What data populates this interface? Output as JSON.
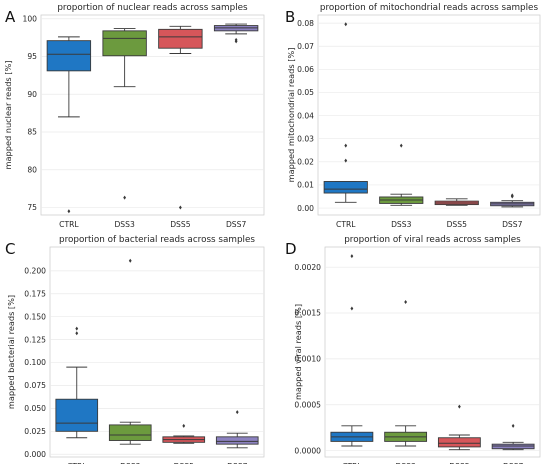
{
  "chart_data": [
    {
      "type": "box",
      "panel_letter": "A",
      "title": "proportion of nuclear reads across samples",
      "xlabel": "",
      "ylabel": "mapped nuclear reads [%]",
      "categories": [
        "CTRL",
        "DSS3",
        "DSS5",
        "DSS7"
      ],
      "ylim": [
        74,
        100.5
      ],
      "yticks": [
        75,
        80,
        85,
        90,
        95,
        100
      ],
      "ytick_labels": [
        "75",
        "80",
        "85",
        "90",
        "95",
        "100"
      ],
      "grid": true,
      "colors": [
        "#1f77c4",
        "#6c9a3e",
        "#d6565a",
        "#8c82c0"
      ],
      "boxes": [
        {
          "category": "CTRL",
          "whislo": 87.0,
          "q1": 93.1,
          "med": 95.3,
          "q3": 97.1,
          "whishi": 97.6,
          "fliers": [
            74.5
          ]
        },
        {
          "category": "DSS3",
          "whislo": 91.0,
          "q1": 95.1,
          "med": 97.4,
          "q3": 98.4,
          "whishi": 98.7,
          "fliers": [
            76.3
          ]
        },
        {
          "category": "DSS5",
          "whislo": 95.4,
          "q1": 96.1,
          "med": 97.6,
          "q3": 98.6,
          "whishi": 99.0,
          "fliers": [
            75.0
          ]
        },
        {
          "category": "DSS7",
          "whislo": 98.0,
          "q1": 98.4,
          "med": 98.8,
          "q3": 99.1,
          "whishi": 99.3,
          "fliers": [
            97.0,
            97.2
          ]
        }
      ]
    },
    {
      "type": "box",
      "panel_letter": "B",
      "title": "proportion of mitochondrial reads across samples",
      "xlabel": "",
      "ylabel": "mapped mitochondrial reads [%]",
      "categories": [
        "CTRL",
        "DSS3",
        "DSS5",
        "DSS7"
      ],
      "ylim": [
        -0.003,
        0.0835
      ],
      "yticks": [
        0.0,
        0.01,
        0.02,
        0.03,
        0.04,
        0.05,
        0.06,
        0.07,
        0.08
      ],
      "ytick_labels": [
        "0.00",
        "0.01",
        "0.02",
        "0.03",
        "0.04",
        "0.05",
        "0.06",
        "0.07",
        "0.08"
      ],
      "grid": true,
      "colors": [
        "#1f77c4",
        "#6c9a3e",
        "#d6565a",
        "#8c82c0"
      ],
      "boxes": [
        {
          "category": "CTRL",
          "whislo": 0.0025,
          "q1": 0.0065,
          "med": 0.0082,
          "q3": 0.0115,
          "whishi": 0.0115,
          "fliers": [
            0.0205,
            0.027,
            0.0795
          ]
        },
        {
          "category": "DSS3",
          "whislo": 0.0012,
          "q1": 0.002,
          "med": 0.0035,
          "q3": 0.0048,
          "whishi": 0.006,
          "fliers": [
            0.027
          ]
        },
        {
          "category": "DSS5",
          "whislo": 0.0012,
          "q1": 0.0015,
          "med": 0.0022,
          "q3": 0.003,
          "whishi": 0.004,
          "fliers": []
        },
        {
          "category": "DSS7",
          "whislo": 0.0005,
          "q1": 0.001,
          "med": 0.0018,
          "q3": 0.0025,
          "whishi": 0.0032,
          "fliers": [
            0.005,
            0.0055
          ]
        }
      ]
    },
    {
      "type": "box",
      "panel_letter": "C",
      "title": "proportion of bacterial reads across samples",
      "xlabel": "",
      "ylabel": "mapped bacterial reads [%]",
      "categories": [
        "CTRL",
        "DSS3",
        "DSS5",
        "DSS7"
      ],
      "ylim": [
        -0.003,
        0.226
      ],
      "yticks": [
        0.0,
        0.025,
        0.05,
        0.075,
        0.1,
        0.125,
        0.15,
        0.175,
        0.2
      ],
      "ytick_labels": [
        "0.000",
        "0.025",
        "0.050",
        "0.075",
        "0.100",
        "0.125",
        "0.150",
        "0.175",
        "0.200"
      ],
      "grid": true,
      "colors": [
        "#1f77c4",
        "#6c9a3e",
        "#d6565a",
        "#8c82c0"
      ],
      "boxes": [
        {
          "category": "CTRL",
          "whislo": 0.018,
          "q1": 0.025,
          "med": 0.034,
          "q3": 0.06,
          "whishi": 0.095,
          "fliers": [
            0.132,
            0.137
          ]
        },
        {
          "category": "DSS3",
          "whislo": 0.011,
          "q1": 0.015,
          "med": 0.021,
          "q3": 0.032,
          "whishi": 0.035,
          "fliers": [
            0.211
          ]
        },
        {
          "category": "DSS5",
          "whislo": 0.012,
          "q1": 0.013,
          "med": 0.016,
          "q3": 0.019,
          "whishi": 0.02,
          "fliers": [
            0.031
          ]
        },
        {
          "category": "DSS7",
          "whislo": 0.007,
          "q1": 0.011,
          "med": 0.014,
          "q3": 0.019,
          "whishi": 0.023,
          "fliers": [
            0.046
          ]
        }
      ]
    },
    {
      "type": "box",
      "panel_letter": "D",
      "title": "proportion of viral reads across samples",
      "xlabel": "",
      "ylabel": "mapped viral reads [%]",
      "categories": [
        "CTRL",
        "DSS3",
        "DSS5",
        "DSS7"
      ],
      "ylim": [
        -7e-05,
        0.00222
      ],
      "yticks": [
        0.0,
        0.0005,
        0.001,
        0.0015,
        0.002
      ],
      "ytick_labels": [
        "0.0000",
        "0.0005",
        "0.0010",
        "0.0015",
        "0.0020"
      ],
      "grid": true,
      "colors": [
        "#1f77c4",
        "#6c9a3e",
        "#d6565a",
        "#8c82c0"
      ],
      "boxes": [
        {
          "category": "CTRL",
          "whislo": 5e-05,
          "q1": 0.0001,
          "med": 0.00015,
          "q3": 0.0002,
          "whishi": 0.00027,
          "fliers": [
            0.00155,
            0.00212
          ]
        },
        {
          "category": "DSS3",
          "whislo": 5e-05,
          "q1": 0.0001,
          "med": 0.00015,
          "q3": 0.0002,
          "whishi": 0.00027,
          "fliers": [
            0.00162
          ]
        },
        {
          "category": "DSS5",
          "whislo": 1e-05,
          "q1": 4e-05,
          "med": 8e-05,
          "q3": 0.00014,
          "whishi": 0.00017,
          "fliers": [
            0.00048
          ]
        },
        {
          "category": "DSS7",
          "whislo": 1e-05,
          "q1": 2e-05,
          "med": 5e-05,
          "q3": 7e-05,
          "whishi": 9e-05,
          "fliers": [
            0.00027
          ]
        }
      ]
    }
  ]
}
